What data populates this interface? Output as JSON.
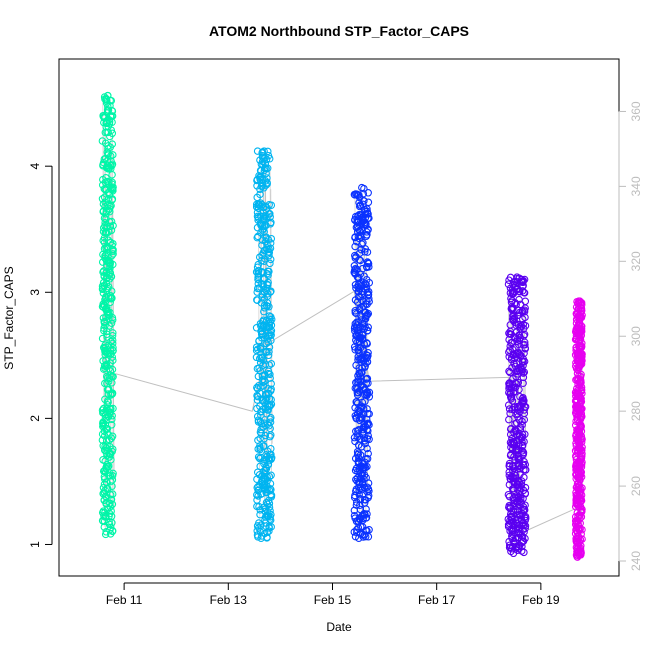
{
  "chart_data": {
    "type": "scatter",
    "title": "ATOM2 Northbound STP_Factor_CAPS",
    "xlabel": "Date",
    "ylabel": "STP_Factor_CAPS",
    "ylim": [
      0.75,
      4.85
    ],
    "y_ticks": [
      1,
      2,
      3,
      4
    ],
    "xlim": [
      "Feb 09 18:00",
      "Feb 20 12:00"
    ],
    "x_ticks": [
      "Feb 11",
      "Feb 13",
      "Feb 15",
      "Feb 17",
      "Feb 19"
    ],
    "secondary_y": {
      "color": "#bdbdbd",
      "range": [
        236,
        374
      ],
      "ticks": [
        240,
        260,
        280,
        300,
        320,
        340,
        360
      ]
    },
    "grid": false,
    "series": [
      {
        "color": "#00f5a8",
        "x_range": [
          "Feb 10 14:00",
          "Feb 10 19:00"
        ],
        "y_range": [
          1.08,
          4.56
        ]
      },
      {
        "color": "#00b4f0",
        "x_range": [
          "Feb 13 13:00",
          "Feb 13 20:00"
        ],
        "y_range": [
          1.05,
          4.12
        ]
      },
      {
        "color": "#0a32ff",
        "x_range": [
          "Feb 15 10:00",
          "Feb 15 17:00"
        ],
        "y_range": [
          1.05,
          3.83
        ]
      },
      {
        "color": "#5a00f0",
        "x_range": [
          "Feb 18 09:00",
          "Feb 18 17:00"
        ],
        "y_range": [
          0.93,
          3.12
        ]
      },
      {
        "color": "#e600f0",
        "x_range": [
          "Feb 19 16:00",
          "Feb 19 19:00"
        ],
        "y_range": [
          0.9,
          2.93
        ]
      }
    ],
    "secondary_line": {
      "color": "#c0c0c0",
      "points": [
        [
          "Feb 10 20:00",
          290
        ],
        [
          "Feb 13 11:00",
          280
        ],
        [
          "Feb 13 18:00",
          298
        ],
        [
          "Feb 15 10:00",
          312
        ],
        [
          "Feb 15 17:00",
          288
        ],
        [
          "Feb 18 09:00",
          289
        ],
        [
          "Feb 18 17:00",
          248
        ],
        [
          "Feb 19 16:00",
          254
        ]
      ]
    }
  }
}
